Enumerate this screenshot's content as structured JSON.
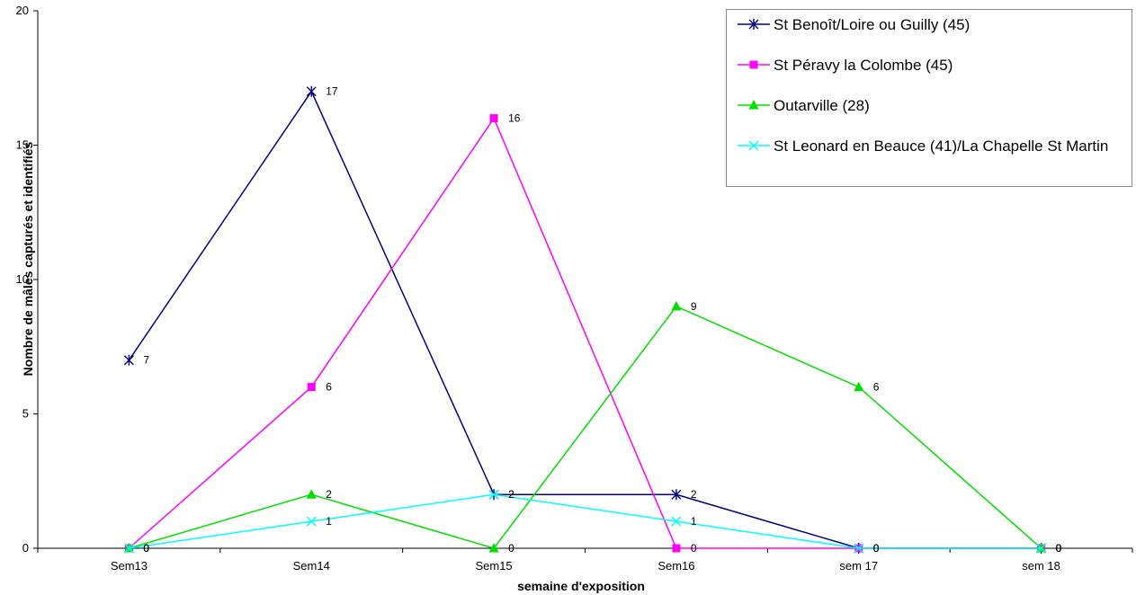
{
  "chart_data": {
    "type": "line",
    "title": "",
    "xlabel": "semaine d'exposition",
    "ylabel": "Nombre de mâles capturés et identifiés",
    "categories": [
      "Sem13",
      "Sem14",
      "Sem15",
      "Sem16",
      "sem 17",
      "sem 18"
    ],
    "ylim": [
      0,
      20
    ],
    "yticks": [
      0,
      5,
      10,
      15,
      20
    ],
    "ytick_labels": [
      "0",
      "5",
      "10",
      "15",
      "20"
    ],
    "grid": false,
    "legend_position": "top-right",
    "series": [
      {
        "name": "St Benoît/Loire ou Guilly (45)",
        "color": "#000080",
        "marker": "asterisk",
        "values": [
          7,
          17,
          2,
          2,
          0,
          0
        ]
      },
      {
        "name": "St Péravy la Colombe (45)",
        "color": "#ff00ff",
        "marker": "square",
        "values": [
          0,
          6,
          16,
          0,
          0,
          0
        ]
      },
      {
        "name": "Outarville (28)",
        "color": "#00e000",
        "marker": "triangle",
        "values": [
          0,
          2,
          0,
          9,
          6,
          0
        ]
      },
      {
        "name": "St Leonard en Beauce (41)/La Chapelle St Martin",
        "color": "#00ffff",
        "marker": "x",
        "values": [
          0,
          1,
          2,
          1,
          0,
          0
        ]
      }
    ]
  }
}
